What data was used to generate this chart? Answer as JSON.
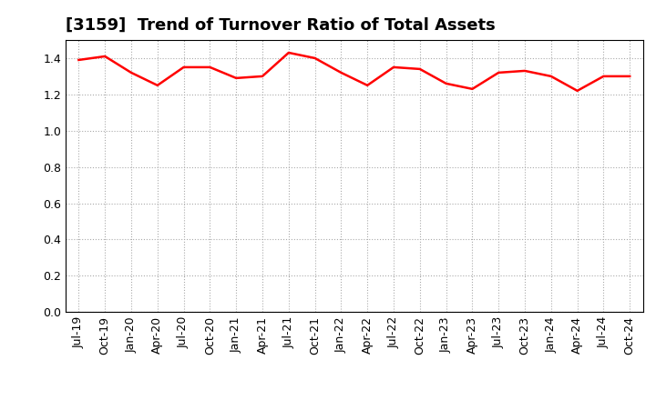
{
  "title": "[3159]  Trend of Turnover Ratio of Total Assets",
  "x_labels": [
    "Jul-19",
    "Oct-19",
    "Jan-20",
    "Apr-20",
    "Jul-20",
    "Oct-20",
    "Jan-21",
    "Apr-21",
    "Jul-21",
    "Oct-21",
    "Jan-22",
    "Apr-22",
    "Jul-22",
    "Oct-22",
    "Jan-23",
    "Apr-23",
    "Jul-23",
    "Oct-23",
    "Jan-24",
    "Apr-24",
    "Jul-24",
    "Oct-24"
  ],
  "y_values": [
    1.39,
    1.41,
    1.32,
    1.25,
    1.35,
    1.35,
    1.29,
    1.3,
    1.43,
    1.4,
    1.32,
    1.25,
    1.35,
    1.34,
    1.26,
    1.23,
    1.32,
    1.33,
    1.3,
    1.22,
    1.3,
    1.3
  ],
  "line_color": "#ff0000",
  "line_width": 1.8,
  "ylim": [
    0.0,
    1.5
  ],
  "yticks": [
    0.0,
    0.2,
    0.4,
    0.6,
    0.8,
    1.0,
    1.2,
    1.4
  ],
  "grid_color": "#aaaaaa",
  "bg_color": "#ffffff",
  "title_fontsize": 13,
  "tick_fontsize": 9
}
